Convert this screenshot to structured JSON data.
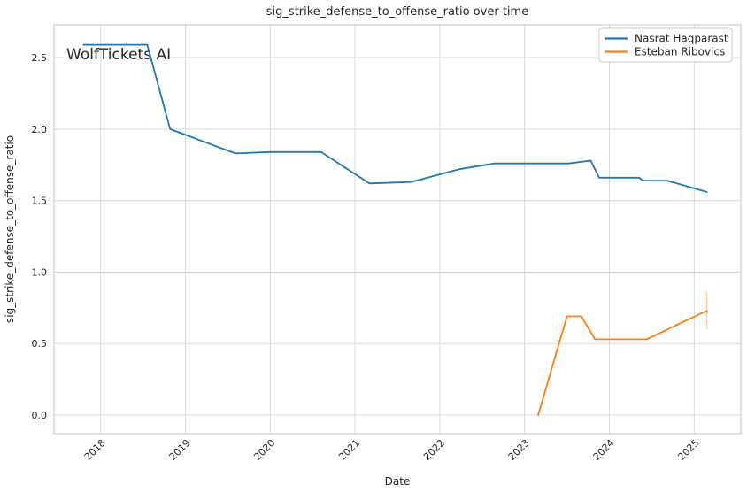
{
  "watermark": "WolfTickets AI",
  "colors": {
    "background": "#ffffff",
    "grid": "#d9d9d9",
    "spine": "#cccccc",
    "text": "#262626",
    "watermark": "#b3b3b3",
    "legend_border": "#cccccc",
    "legend_background": "#ffffff"
  },
  "chart_data": {
    "type": "line",
    "title": "sig_strike_defense_to_offense_ratio over time",
    "xlabel": "Date",
    "ylabel": "sig_strike_defense_to_offense_ratio",
    "xlim": [
      2017.45,
      2025.55
    ],
    "ylim": [
      -0.13,
      2.73
    ],
    "grid": true,
    "legend_position": "upper right",
    "x_ticks": [
      2018,
      2019,
      2020,
      2021,
      2022,
      2023,
      2024,
      2025
    ],
    "x_tick_labels": [
      "2018",
      "2019",
      "2020",
      "2021",
      "2022",
      "2023",
      "2024",
      "2025"
    ],
    "y_ticks": [
      0.0,
      0.5,
      1.0,
      1.5,
      2.0,
      2.5
    ],
    "y_tick_labels": [
      "0.0",
      "0.5",
      "1.0",
      "1.5",
      "2.0",
      "2.5"
    ],
    "series": [
      {
        "name": "Nasrat Haqparast",
        "color": "#1f77b4",
        "x": [
          2017.8,
          2018.55,
          2018.82,
          2019.59,
          2020.0,
          2020.6,
          2021.17,
          2021.66,
          2022.23,
          2022.65,
          2023.52,
          2023.78,
          2023.88,
          2024.35,
          2024.4,
          2024.68,
          2025.15
        ],
        "y": [
          2.59,
          2.59,
          2.0,
          1.83,
          1.84,
          1.84,
          1.62,
          1.63,
          1.72,
          1.76,
          1.76,
          1.78,
          1.66,
          1.66,
          1.64,
          1.64,
          1.56
        ]
      },
      {
        "name": "Esteban Ribovics",
        "color": "#ff7f0e",
        "x": [
          2023.16,
          2023.5,
          2023.67,
          2023.83,
          2024.44,
          2025.15
        ],
        "y": [
          0.0,
          0.69,
          0.69,
          0.53,
          0.53,
          0.73
        ],
        "error_bar": {
          "x": 2025.15,
          "low": 0.6,
          "high": 0.86,
          "color": "#ffd6ab"
        }
      }
    ]
  }
}
